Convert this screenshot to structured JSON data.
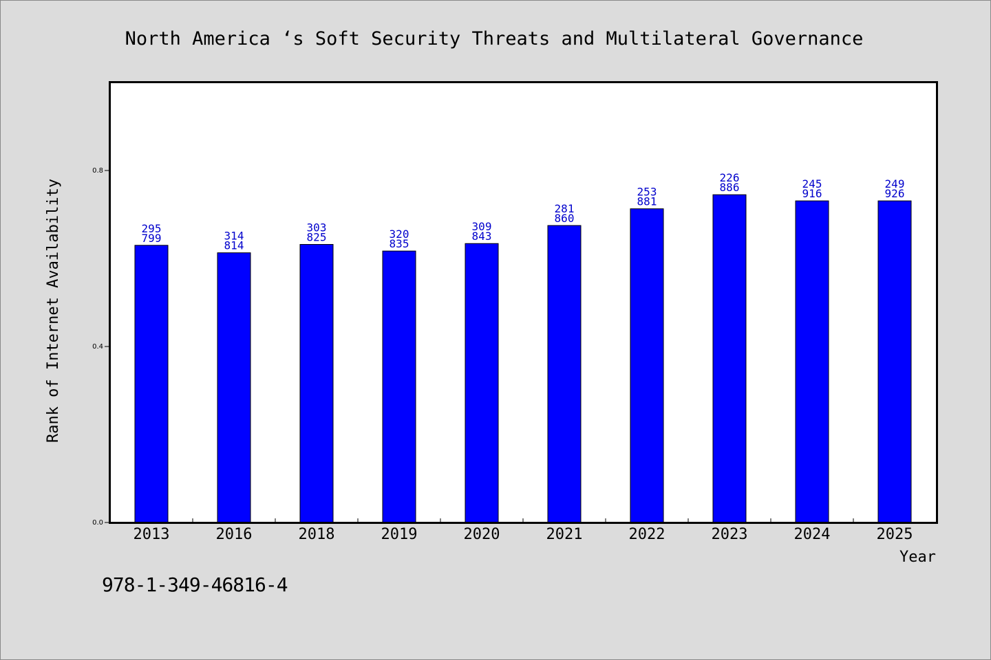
{
  "chart_data": {
    "type": "bar",
    "title": "North America ‘s Soft Security Threats and Multilateral Governance",
    "xlabel": "Year",
    "ylabel": "Rank of Internet Availability",
    "categories": [
      "2013",
      "2016",
      "2018",
      "2019",
      "2020",
      "2021",
      "2022",
      "2023",
      "2024",
      "2025"
    ],
    "series": [
      {
        "values": [
          0.63,
          0.613,
          0.632,
          0.617,
          0.634,
          0.675,
          0.713,
          0.745,
          0.731,
          0.731
        ]
      }
    ],
    "data_labels": [
      [
        "295",
        "799"
      ],
      [
        "314",
        "814"
      ],
      [
        "303",
        "825"
      ],
      [
        "320",
        "835"
      ],
      [
        "309",
        "843"
      ],
      [
        "281",
        "860"
      ],
      [
        "253",
        "881"
      ],
      [
        "226",
        "886"
      ],
      [
        "245",
        "916"
      ],
      [
        "249",
        "926"
      ]
    ],
    "yticks": [
      "0.0",
      "0.4",
      "0.8"
    ],
    "ytick_values": [
      0.0,
      0.4,
      0.8
    ],
    "ylim": [
      0,
      1.0
    ],
    "grid": false,
    "bar_color": "#0000ff",
    "label_color": "#0000cc",
    "background": "#dcdcdc",
    "plot_background": "#ffffff"
  },
  "footer": {
    "isbn": "978-1-349-46816-4"
  }
}
